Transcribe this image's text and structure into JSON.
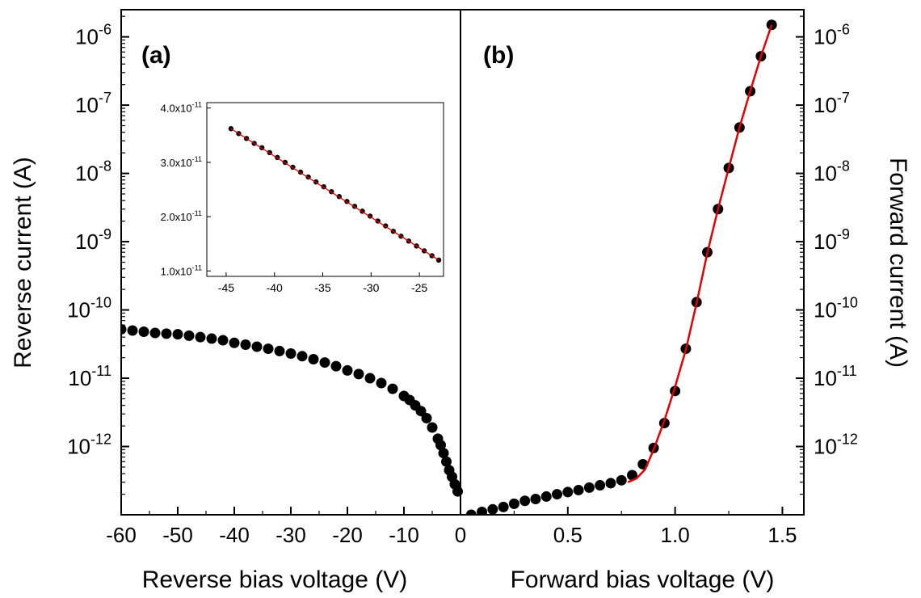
{
  "colors": {
    "points": "#000000",
    "fit": "#e00000",
    "axis": "#000000",
    "background": "#ffffff"
  },
  "chart_data": [
    {
      "id": "panel-a",
      "type": "scatter",
      "panel_label": "(a)",
      "xlabel": "Reverse bias voltage (V)",
      "ylabel": "Reverse current (A)",
      "x_scale": "linear",
      "y_scale": "log",
      "xlim": [
        -60,
        0
      ],
      "ylim": [
        1e-13,
        2.5e-06
      ],
      "x_ticks": [
        -60,
        -50,
        -40,
        -30,
        -20,
        -10,
        0
      ],
      "x_tick_labels": [
        "-60",
        "-50",
        "-40",
        "-30",
        "-20",
        "-10",
        "0"
      ],
      "y_ticks": [
        1e-12,
        1e-11,
        1e-10,
        1e-09,
        1e-08,
        1e-07,
        1e-06
      ],
      "y_tick_labels": [
        {
          "base": "10",
          "exp": "-12"
        },
        {
          "base": "10",
          "exp": "-11"
        },
        {
          "base": "10",
          "exp": "-10"
        },
        {
          "base": "10",
          "exp": "-9"
        },
        {
          "base": "10",
          "exp": "-8"
        },
        {
          "base": "10",
          "exp": "-7"
        },
        {
          "base": "10",
          "exp": "-6"
        }
      ],
      "grid": false,
      "series": [
        {
          "marker": "filled-circle",
          "x": [
            -60,
            -58,
            -56,
            -54,
            -52,
            -50,
            -48,
            -46,
            -44,
            -42,
            -40,
            -38,
            -36,
            -34,
            -32,
            -30,
            -28,
            -26,
            -24,
            -22,
            -20,
            -18,
            -16,
            -14,
            -12,
            -10,
            -9,
            -8,
            -7,
            -6,
            -5,
            -4,
            -3.5,
            -3,
            -2.5,
            -2,
            -1.5,
            -1,
            -0.5
          ],
          "y": [
            5.2e-11,
            5e-11,
            4.8e-11,
            4.6e-11,
            4.5e-11,
            4.4e-11,
            4.2e-11,
            4e-11,
            3.8e-11,
            3.6e-11,
            3.3e-11,
            3.1e-11,
            2.9e-11,
            2.7e-11,
            2.5e-11,
            2.3e-11,
            2.1e-11,
            1.9e-11,
            1.7e-11,
            1.5e-11,
            1.3e-11,
            1.15e-11,
            1e-11,
            8.5e-12,
            7e-12,
            5.5e-12,
            4.8e-12,
            4e-12,
            3.3e-12,
            2.6e-12,
            1.9e-12,
            1.3e-12,
            1.05e-12,
            8e-13,
            6e-13,
            4.5e-13,
            3.6e-13,
            2.8e-13,
            2.2e-13
          ]
        }
      ]
    },
    {
      "id": "panel-b",
      "type": "scatter",
      "panel_label": "(b)",
      "xlabel": "Forward bias voltage (V)",
      "ylabel": "Forward current (A)",
      "x_scale": "linear",
      "y_scale": "log",
      "xlim": [
        0,
        1.6
      ],
      "ylim": [
        1e-13,
        2.5e-06
      ],
      "x_ticks": [
        0,
        0.5,
        1.0,
        1.5
      ],
      "x_tick_labels": [
        "0",
        "0.5",
        "1.0",
        "1.5"
      ],
      "y_ticks": [
        1e-12,
        1e-11,
        1e-10,
        1e-09,
        1e-08,
        1e-07,
        1e-06
      ],
      "y_tick_labels": [
        {
          "base": "10",
          "exp": "-12"
        },
        {
          "base": "10",
          "exp": "-11"
        },
        {
          "base": "10",
          "exp": "-10"
        },
        {
          "base": "10",
          "exp": "-9"
        },
        {
          "base": "10",
          "exp": "-8"
        },
        {
          "base": "10",
          "exp": "-7"
        },
        {
          "base": "10",
          "exp": "-6"
        }
      ],
      "grid": false,
      "series": [
        {
          "marker": "filled-circle",
          "x": [
            0.05,
            0.1,
            0.15,
            0.2,
            0.25,
            0.3,
            0.35,
            0.4,
            0.45,
            0.5,
            0.55,
            0.6,
            0.65,
            0.7,
            0.75,
            0.8,
            0.85,
            0.9,
            0.95,
            1.0,
            1.05,
            1.1,
            1.15,
            1.2,
            1.25,
            1.3,
            1.35,
            1.4,
            1.45
          ],
          "y": [
            1e-13,
            1.1e-13,
            1.2e-13,
            1.3e-13,
            1.45e-13,
            1.6e-13,
            1.7e-13,
            1.85e-13,
            2e-13,
            2.15e-13,
            2.3e-13,
            2.5e-13,
            2.7e-13,
            2.9e-13,
            3.2e-13,
            3.8e-13,
            5.5e-13,
            9.5e-13,
            2.2e-12,
            6.5e-12,
            2.7e-11,
            1.3e-10,
            7e-10,
            3e-09,
            1.2e-08,
            4.7e-08,
            1.6e-07,
            5.2e-07,
            1.5e-06
          ]
        },
        {
          "type": "line",
          "x": [
            0.78,
            0.82,
            0.86,
            0.9,
            0.95,
            1.0,
            1.05,
            1.1,
            1.15,
            1.2,
            1.25,
            1.3,
            1.35,
            1.4,
            1.45
          ],
          "y": [
            3e-13,
            3.4e-13,
            4.6e-13,
            9e-13,
            2.4e-12,
            7.5e-12,
            2.6e-11,
            1.25e-10,
            6.8e-10,
            3e-09,
            1.2e-08,
            4.7e-08,
            1.6e-07,
            5.2e-07,
            1.5e-06
          ]
        }
      ]
    },
    {
      "id": "inset",
      "type": "scatter",
      "x_scale": "linear",
      "y_scale": "linear",
      "xlim": [
        -47,
        -22.5
      ],
      "ylim": [
        9e-12,
        4.1e-11
      ],
      "x_ticks": [
        -45,
        -40,
        -35,
        -30,
        -25
      ],
      "x_tick_labels": [
        "-45",
        "-40",
        "-35",
        "-30",
        "-25"
      ],
      "y_ticks": [
        1e-11,
        2e-11,
        3e-11,
        4e-11
      ],
      "y_tick_labels": [
        {
          "base": "1.0x10",
          "exp": "-11"
        },
        {
          "base": "2.0x10",
          "exp": "-11"
        },
        {
          "base": "3.0x10",
          "exp": "-11"
        },
        {
          "base": "4.0x10",
          "exp": "-11"
        }
      ],
      "grid": false,
      "series": [
        {
          "marker": "filled-circle",
          "x": [
            -44.5,
            -43.7,
            -42.9,
            -42.1,
            -41.3,
            -40.5,
            -39.7,
            -38.9,
            -38.1,
            -37.3,
            -36.5,
            -35.7,
            -34.9,
            -34.1,
            -33.3,
            -32.5,
            -31.7,
            -30.9,
            -30.1,
            -29.3,
            -28.5,
            -27.7,
            -26.9,
            -26.1,
            -25.3,
            -24.5,
            -23.7,
            -23.0
          ],
          "y": [
            3.62e-11,
            3.53e-11,
            3.44e-11,
            3.35e-11,
            3.27e-11,
            3.18e-11,
            3.09e-11,
            3e-11,
            2.91e-11,
            2.82e-11,
            2.73e-11,
            2.64e-11,
            2.55e-11,
            2.46e-11,
            2.37e-11,
            2.28e-11,
            2.19e-11,
            2.1e-11,
            2.01e-11,
            1.92e-11,
            1.83e-11,
            1.73e-11,
            1.64e-11,
            1.55e-11,
            1.46e-11,
            1.37e-11,
            1.28e-11,
            1.2e-11
          ]
        },
        {
          "type": "line",
          "x": [
            -44.5,
            -23.0
          ],
          "y": [
            3.62e-11,
            1.2e-11
          ]
        }
      ]
    }
  ]
}
